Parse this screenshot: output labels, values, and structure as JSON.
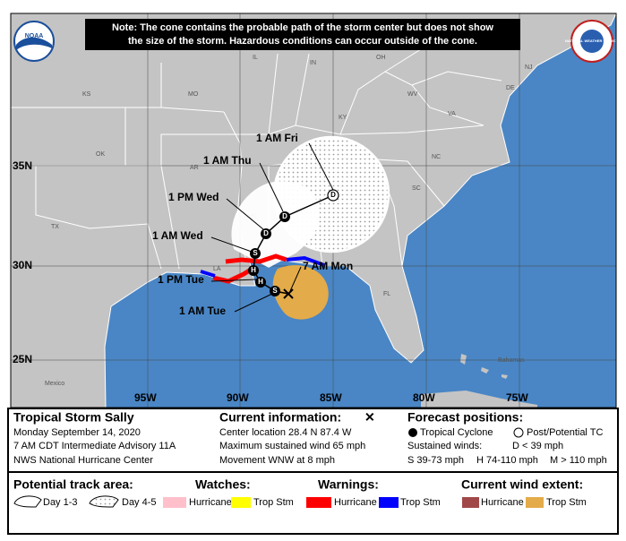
{
  "note": [
    "Note: The cone contains the probable path of the storm center but does not show",
    "the size of the storm. Hazardous conditions can occur outside of the cone."
  ],
  "logos": {
    "left": "NOAA",
    "right": "NATIONAL WEATHER SERVICE"
  },
  "map": {
    "regions": [
      "KS",
      "MO",
      "IL",
      "IN",
      "OH",
      "KY",
      "WV",
      "VA",
      "TN",
      "NC",
      "SC",
      "GA",
      "AL",
      "MS",
      "AR",
      "OK",
      "TX",
      "LA",
      "FL",
      "NJ",
      "DE",
      "Bahamas",
      "Mexico"
    ],
    "latitudes": [
      "35N",
      "30N",
      "25N"
    ],
    "longitudes": [
      "95W",
      "90W",
      "85W",
      "80W",
      "75W"
    ],
    "forecast_times": [
      "1 AM Fri",
      "1 AM Thu",
      "1 PM Wed",
      "1 AM Wed",
      "7 AM Mon",
      "1 PM Tue",
      "1 AM Tue"
    ],
    "points": [
      "S",
      "H",
      "H",
      "S",
      "D",
      "D",
      "D"
    ]
  },
  "panel": {
    "storm": {
      "name": "Tropical Storm Sally",
      "date": "Monday September 14, 2020",
      "advisory": "7 AM CDT Intermediate Advisory 11A",
      "source": "NWS National Hurricane Center"
    },
    "current": {
      "heading": "Current information:",
      "symbol": "✕",
      "lines": [
        "Center location 28.4 N 87.4 W",
        "Maximum sustained wind 65 mph",
        "Movement WNW at 8 mph"
      ]
    },
    "forecast": {
      "heading": "Forecast positions:",
      "tropical_cyclone": "Tropical Cyclone",
      "post_potential": "Post/Potential TC",
      "sustained_winds": "Sustained winds:",
      "classes": [
        "D < 39 mph",
        "S 39-73 mph",
        "H 74-110 mph",
        "M > 110 mph"
      ]
    },
    "legend": {
      "track_area": {
        "heading": "Potential track area:",
        "items": [
          "Day 1-3",
          "Day 4-5"
        ]
      },
      "watches": {
        "heading": "Watches:",
        "items": [
          "Hurricane",
          "Trop Stm"
        ]
      },
      "warnings": {
        "heading": "Warnings:",
        "items": [
          "Hurricane",
          "Trop Stm"
        ]
      },
      "wind_extent": {
        "heading": "Current wind extent:",
        "items": [
          "Hurricane",
          "Trop Stm"
        ]
      }
    }
  }
}
